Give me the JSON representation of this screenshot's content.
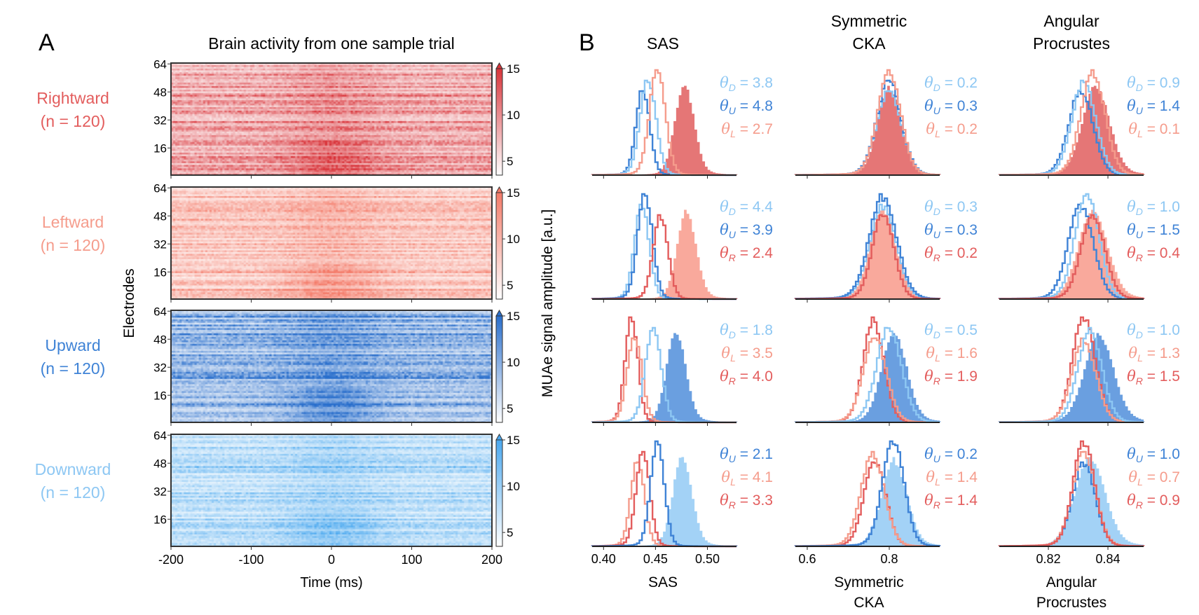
{
  "panel_a": {
    "letter": "A",
    "title": "Brain activity from one sample trial",
    "ylabel": "Electrodes",
    "xlabel": "Time (ms)",
    "colorbar_label": "MUAe signal amplitude [a.u.]",
    "x_ticks": [
      "-200",
      "-100",
      "0",
      "100",
      "200"
    ],
    "y_ticks": [
      "16",
      "32",
      "48",
      "64"
    ],
    "colorbar_ticks": [
      "5",
      "10",
      "15"
    ],
    "colorbar_range": [
      3.5,
      15
    ],
    "rows": [
      {
        "name": "Rightward",
        "n": "(n = 120)",
        "color": "#e35d5d",
        "cmap": "#d9343a"
      },
      {
        "name": "Leftward",
        "n": "(n = 120)",
        "color": "#f59c8c",
        "cmap": "#f47a68"
      },
      {
        "name": "Upward",
        "n": "(n = 120)",
        "color": "#3f83d6",
        "cmap": "#2a6fcc"
      },
      {
        "name": "Downward",
        "n": "(n = 120)",
        "color": "#8dc7f3",
        "cmap": "#4aa8ef"
      }
    ]
  },
  "panel_b": {
    "letter": "B",
    "columns": [
      {
        "title": [
          "SAS"
        ],
        "xlabel": [
          "SAS"
        ]
      },
      {
        "title": [
          "Symmetric",
          "CKA"
        ],
        "xlabel": [
          "Symmetric",
          "CKA"
        ]
      },
      {
        "title": [
          "Angular",
          "Procrustes"
        ],
        "xlabel": [
          "Angular",
          "Procrustes"
        ]
      }
    ],
    "direction_colors": {
      "R": "#e35d5d",
      "L": "#f59c8c",
      "U": "#3f83d6",
      "D": "#8dc7f3"
    },
    "fill_colors": {
      "R": "#e57676",
      "L": "#f9a99c",
      "U": "#6a9fe0",
      "D": "#a3d2f6"
    }
  },
  "chart_data": [
    {
      "type": "heatmap",
      "title": "Brain activity from one sample trial",
      "xlabel": "Time (ms)",
      "ylabel": "Electrodes",
      "xlim": [
        -200,
        200
      ],
      "ylim": [
        1,
        64
      ],
      "colorbar_label": "MUAe signal amplitude [a.u.]",
      "colorbar_ticks": [
        5,
        10,
        15
      ],
      "conditions": [
        "Rightward",
        "Leftward",
        "Upward",
        "Downward"
      ]
    },
    {
      "type": "histogram",
      "grid": false,
      "metrics": [
        {
          "metric": "SAS",
          "xlim": [
            0.389,
            0.528
          ],
          "x_ticks": [
            "0.40",
            "0.45",
            "0.50"
          ],
          "x_tick_values": [
            0.4,
            0.45,
            0.5
          ],
          "rows": [
            {
              "filled": "R",
              "filled_center": 0.478,
              "filled_spread": 0.009,
              "outlines": [
                {
                  "dir": "U",
                  "center": 0.438,
                  "spread": 0.0065
                },
                {
                  "dir": "D",
                  "center": 0.443,
                  "spread": 0.0075
                },
                {
                  "dir": "L",
                  "center": 0.452,
                  "spread": 0.0075
                }
              ],
              "annotations": [
                {
                  "sub": "D",
                  "value": "3.8"
                },
                {
                  "sub": "U",
                  "value": "4.8"
                },
                {
                  "sub": "L",
                  "value": "2.7"
                }
              ]
            },
            {
              "filled": "L",
              "filled_center": 0.48,
              "filled_spread": 0.009,
              "outlines": [
                {
                  "dir": "D",
                  "center": 0.437,
                  "spread": 0.007
                },
                {
                  "dir": "U",
                  "center": 0.44,
                  "spread": 0.007
                },
                {
                  "dir": "R",
                  "center": 0.455,
                  "spread": 0.007
                }
              ],
              "annotations": [
                {
                  "sub": "D",
                  "value": "4.4"
                },
                {
                  "sub": "U",
                  "value": "3.9"
                },
                {
                  "sub": "R",
                  "value": "2.4"
                }
              ]
            },
            {
              "filled": "U",
              "filled_center": 0.47,
              "filled_spread": 0.009,
              "outlines": [
                {
                  "dir": "R",
                  "center": 0.427,
                  "spread": 0.006
                },
                {
                  "dir": "L",
                  "center": 0.43,
                  "spread": 0.007
                },
                {
                  "dir": "D",
                  "center": 0.448,
                  "spread": 0.0075
                }
              ],
              "annotations": [
                {
                  "sub": "D",
                  "value": "1.8"
                },
                {
                  "sub": "L",
                  "value": "3.5"
                },
                {
                  "sub": "R",
                  "value": "4.0"
                }
              ]
            },
            {
              "filled": "D",
              "filled_center": 0.476,
              "filled_spread": 0.009,
              "outlines": [
                {
                  "dir": "L",
                  "center": 0.433,
                  "spread": 0.0065
                },
                {
                  "dir": "R",
                  "center": 0.438,
                  "spread": 0.0065
                },
                {
                  "dir": "U",
                  "center": 0.452,
                  "spread": 0.0065
                }
              ],
              "annotations": [
                {
                  "sub": "U",
                  "value": "2.1"
                },
                {
                  "sub": "L",
                  "value": "4.1"
                },
                {
                  "sub": "R",
                  "value": "3.3"
                }
              ]
            }
          ]
        },
        {
          "metric": "Symmetric CKA",
          "xlim": [
            0.571,
            0.923
          ],
          "x_ticks": [
            "0.6",
            "0.8"
          ],
          "x_tick_values": [
            0.6,
            0.8
          ],
          "rows": [
            {
              "filled": "R",
              "filled_center": 0.8,
              "filled_spread": 0.028,
              "outlines": [
                {
                  "dir": "D",
                  "center": 0.8,
                  "spread": 0.03
                },
                {
                  "dir": "U",
                  "center": 0.8,
                  "spread": 0.029
                },
                {
                  "dir": "L",
                  "center": 0.8,
                  "spread": 0.028
                }
              ],
              "annotations": [
                {
                  "sub": "D",
                  "value": "0.2"
                },
                {
                  "sub": "U",
                  "value": "0.3"
                },
                {
                  "sub": "L",
                  "value": "0.2"
                }
              ]
            },
            {
              "filled": "L",
              "filled_center": 0.785,
              "filled_spread": 0.031,
              "outlines": [
                {
                  "dir": "D",
                  "center": 0.785,
                  "spread": 0.032
                },
                {
                  "dir": "U",
                  "center": 0.785,
                  "spread": 0.033
                },
                {
                  "dir": "R",
                  "center": 0.785,
                  "spread": 0.026
                }
              ],
              "annotations": [
                {
                  "sub": "D",
                  "value": "0.3"
                },
                {
                  "sub": "U",
                  "value": "0.3"
                },
                {
                  "sub": "R",
                  "value": "0.2"
                }
              ]
            },
            {
              "filled": "U",
              "filled_center": 0.812,
              "filled_spread": 0.03,
              "outlines": [
                {
                  "dir": "R",
                  "center": 0.762,
                  "spread": 0.025
                },
                {
                  "dir": "L",
                  "center": 0.765,
                  "spread": 0.028
                },
                {
                  "dir": "D",
                  "center": 0.8,
                  "spread": 0.03
                }
              ],
              "annotations": [
                {
                  "sub": "D",
                  "value": "0.5"
                },
                {
                  "sub": "L",
                  "value": "1.6"
                },
                {
                  "sub": "R",
                  "value": "1.9"
                }
              ]
            },
            {
              "filled": "D",
              "filled_center": 0.812,
              "filled_spread": 0.03,
              "outlines": [
                {
                  "dir": "R",
                  "center": 0.765,
                  "spread": 0.026
                },
                {
                  "dir": "L",
                  "center": 0.76,
                  "spread": 0.028
                },
                {
                  "dir": "U",
                  "center": 0.81,
                  "spread": 0.026
                }
              ],
              "annotations": [
                {
                  "sub": "U",
                  "value": "0.2"
                },
                {
                  "sub": "L",
                  "value": "1.4"
                },
                {
                  "sub": "R",
                  "value": "1.4"
                }
              ]
            }
          ]
        },
        {
          "metric": "Angular Procrustes",
          "xlim": [
            0.8035,
            0.852
          ],
          "x_ticks": [
            "0.82",
            "0.84"
          ],
          "x_tick_values": [
            0.82,
            0.84
          ],
          "rows": [
            {
              "filled": "R",
              "filled_center": 0.836,
              "filled_spread": 0.0045,
              "outlines": [
                {
                  "dir": "U",
                  "center": 0.831,
                  "spread": 0.004
                },
                {
                  "dir": "D",
                  "center": 0.832,
                  "spread": 0.004
                },
                {
                  "dir": "L",
                  "center": 0.835,
                  "spread": 0.004
                }
              ],
              "annotations": [
                {
                  "sub": "D",
                  "value": "0.9"
                },
                {
                  "sub": "U",
                  "value": "1.4"
                },
                {
                  "sub": "L",
                  "value": "0.1"
                }
              ]
            },
            {
              "filled": "L",
              "filled_center": 0.835,
              "filled_spread": 0.0048,
              "outlines": [
                {
                  "dir": "U",
                  "center": 0.831,
                  "spread": 0.0042
                },
                {
                  "dir": "D",
                  "center": 0.833,
                  "spread": 0.004
                },
                {
                  "dir": "R",
                  "center": 0.835,
                  "spread": 0.004
                }
              ],
              "annotations": [
                {
                  "sub": "D",
                  "value": "1.0"
                },
                {
                  "sub": "U",
                  "value": "1.5"
                },
                {
                  "sub": "R",
                  "value": "0.4"
                }
              ]
            },
            {
              "filled": "U",
              "filled_center": 0.837,
              "filled_spread": 0.0048,
              "outlines": [
                {
                  "dir": "R",
                  "center": 0.832,
                  "spread": 0.0038
                },
                {
                  "dir": "L",
                  "center": 0.832,
                  "spread": 0.004
                },
                {
                  "dir": "D",
                  "center": 0.834,
                  "spread": 0.004
                }
              ],
              "annotations": [
                {
                  "sub": "D",
                  "value": "1.0"
                },
                {
                  "sub": "L",
                  "value": "1.3"
                },
                {
                  "sub": "R",
                  "value": "1.5"
                }
              ]
            },
            {
              "filled": "D",
              "filled_center": 0.834,
              "filled_spread": 0.005,
              "outlines": [
                {
                  "dir": "U",
                  "center": 0.832,
                  "spread": 0.0038
                },
                {
                  "dir": "L",
                  "center": 0.832,
                  "spread": 0.0038
                },
                {
                  "dir": "R",
                  "center": 0.832,
                  "spread": 0.0036
                }
              ],
              "annotations": [
                {
                  "sub": "U",
                  "value": "1.0"
                },
                {
                  "sub": "L",
                  "value": "0.7"
                },
                {
                  "sub": "R",
                  "value": "0.9"
                }
              ]
            }
          ]
        }
      ]
    }
  ]
}
